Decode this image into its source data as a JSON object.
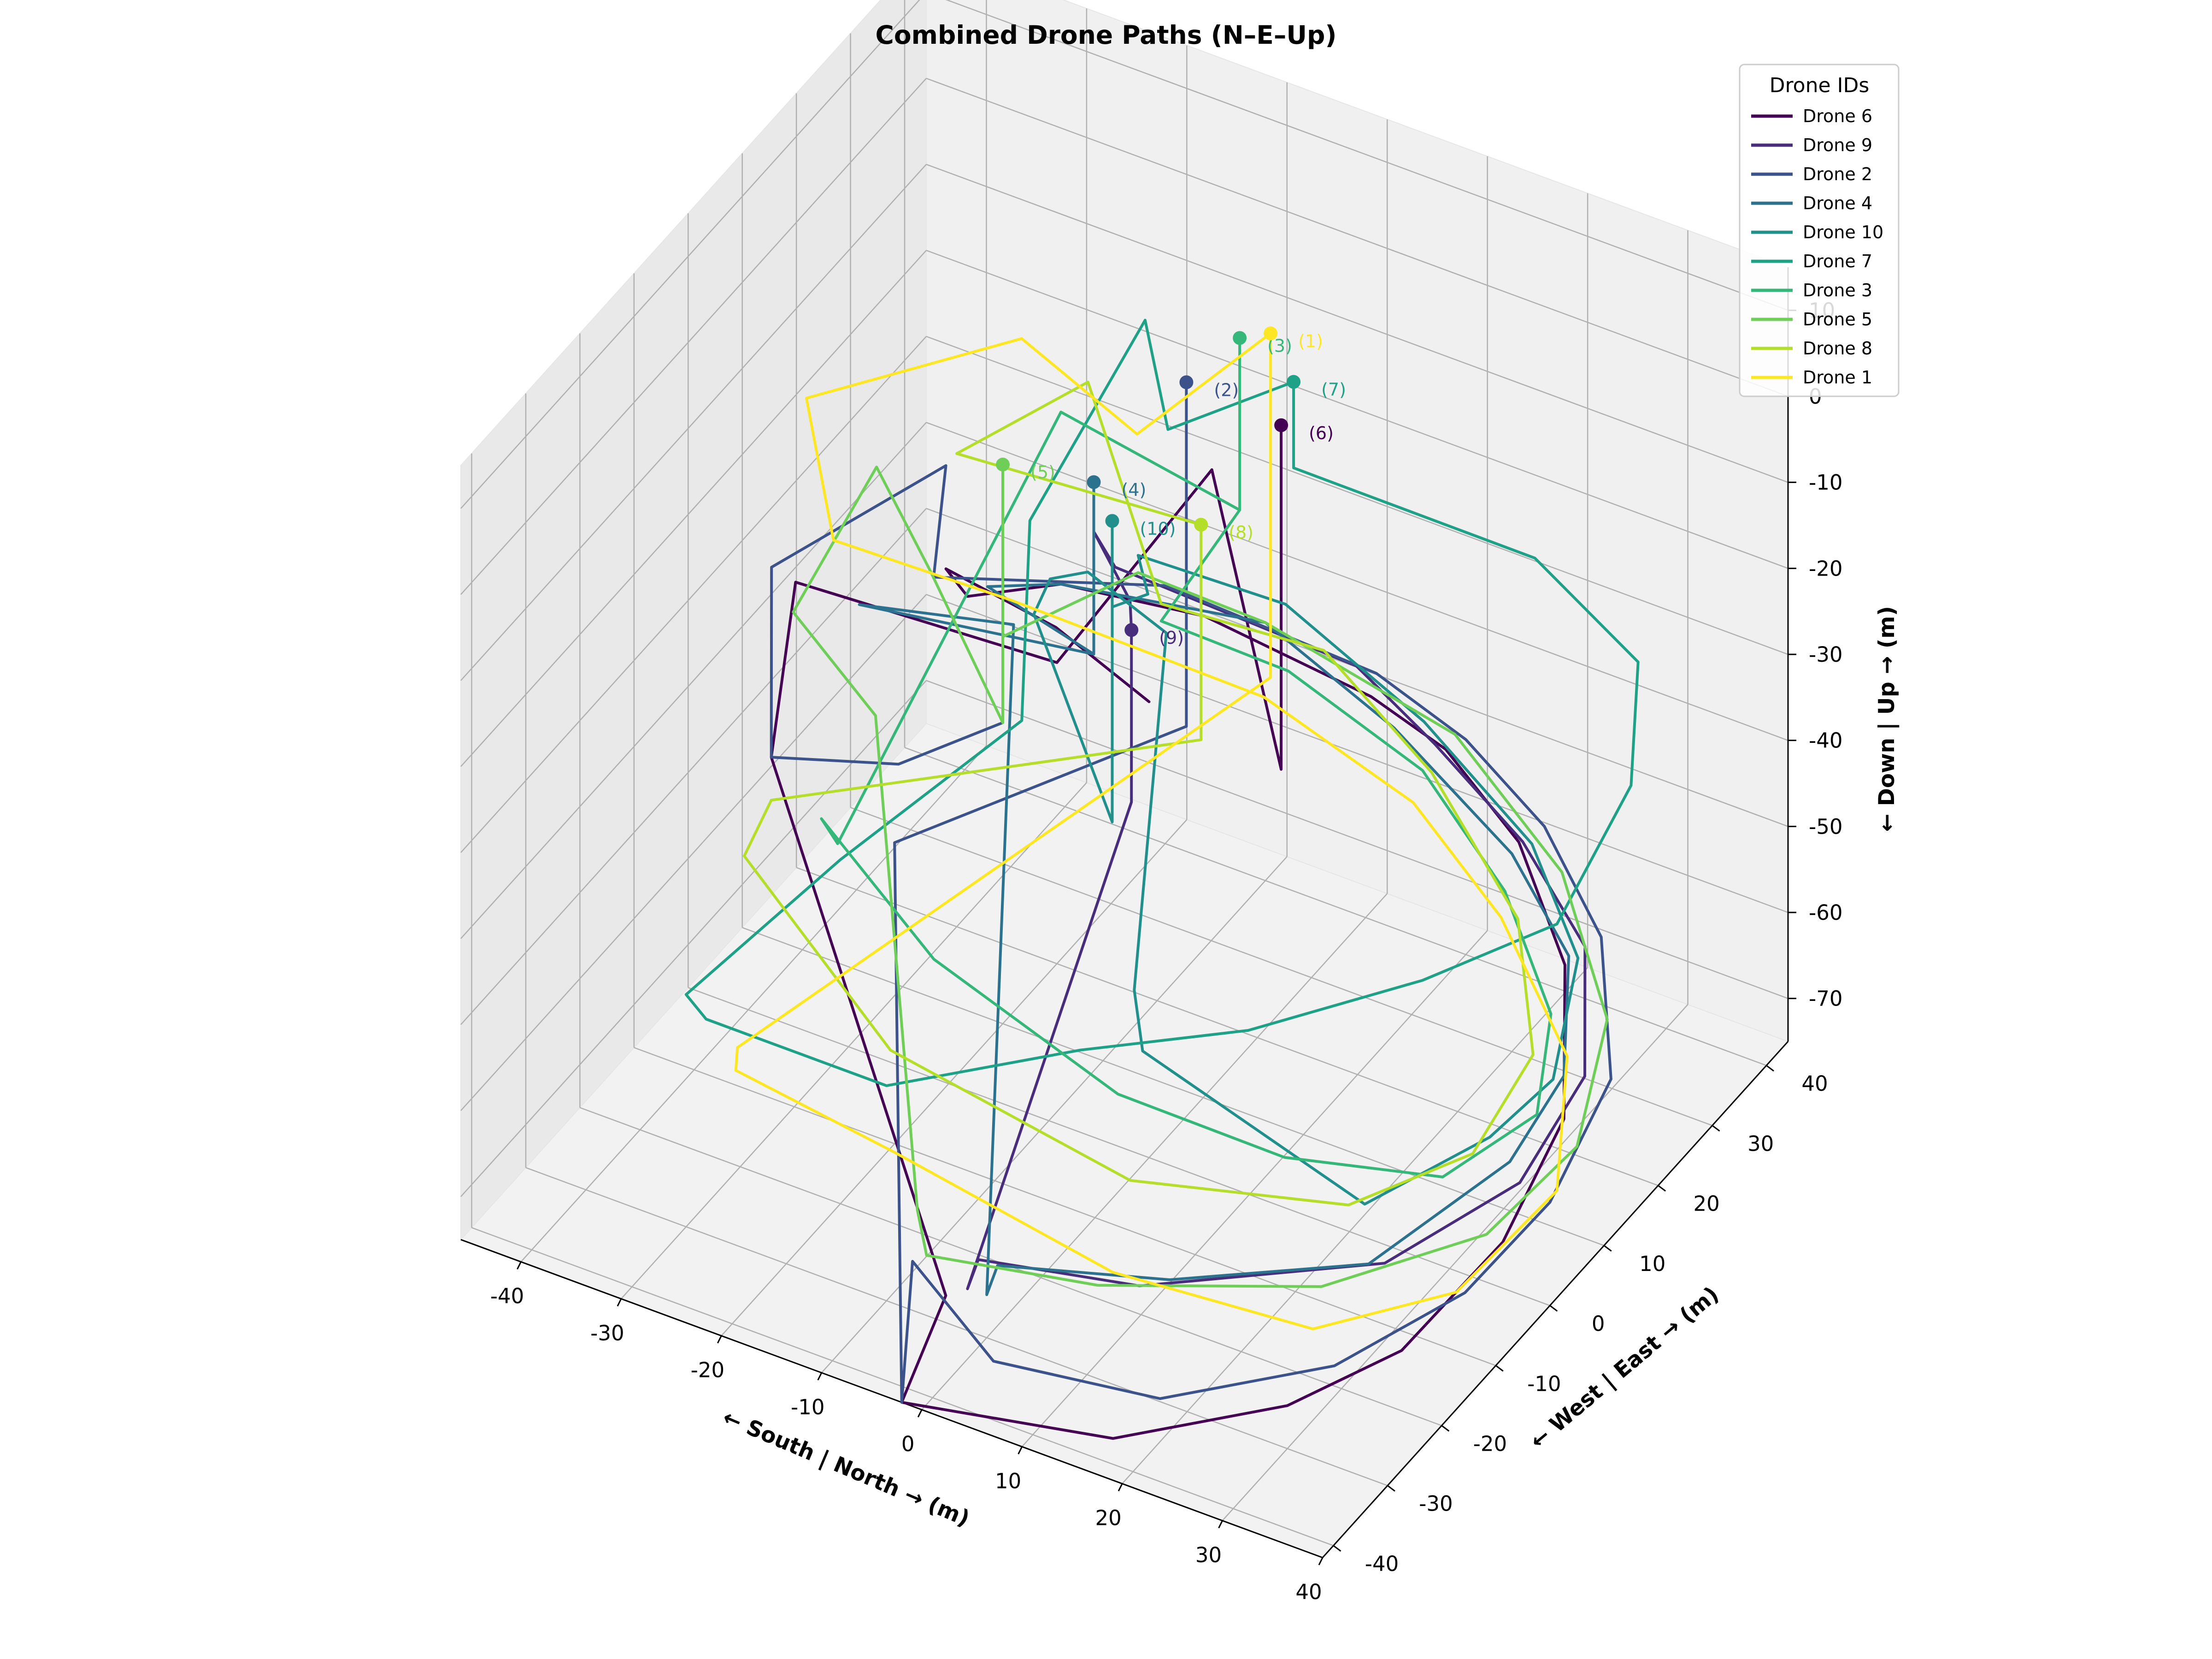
{
  "chart_data": {
    "type": "line",
    "title": "Combined Drone Paths (N–E–Up)",
    "xlabel": "← South | North → (m)",
    "ylabel": "← West | East → (m)",
    "zlabel": "← Down | Up → (m)",
    "xlim": [
      -46,
      40
    ],
    "ylim": [
      -42,
      44
    ],
    "zlim": [
      -75,
      15
    ],
    "x_ticks": [
      -40,
      -30,
      -20,
      -10,
      0,
      10,
      20,
      30,
      40
    ],
    "y_ticks": [
      -40,
      -30,
      -20,
      -10,
      0,
      10,
      20,
      30,
      40
    ],
    "z_ticks": [
      10,
      0,
      -10,
      -20,
      -30,
      -40,
      -50,
      -60,
      -70
    ],
    "grid": true,
    "legend": {
      "title": "Drone IDs",
      "placement": "top-right"
    },
    "series": [
      {
        "name": "Drone 6",
        "id": "6",
        "color": "#440154",
        "points": [
          [
            4,
            17,
            0
          ],
          [
            4,
            17,
            -20
          ],
          [
            4,
            17,
            -40
          ],
          [
            -4,
            19,
            -10
          ],
          [
            -20,
            20,
            -40
          ],
          [
            -45,
            18,
            -40
          ],
          [
            -35,
            -5,
            -40
          ],
          [
            -3,
            -32,
            -70
          ],
          [
            -2,
            -42,
            -75
          ],
          [
            18,
            -40,
            -72
          ],
          [
            30,
            -30,
            -70
          ],
          [
            36,
            -20,
            -68
          ],
          [
            38,
            -5,
            -65
          ],
          [
            36,
            10,
            -62
          ],
          [
            28,
            25,
            -58
          ],
          [
            18,
            35,
            -55
          ],
          [
            8,
            40,
            -52
          ],
          [
            0,
            41,
            -50
          ],
          [
            -15,
            38,
            -45
          ],
          [
            -25,
            30,
            -40
          ],
          [
            -30,
            22,
            -38
          ],
          [
            -30,
            18,
            -32
          ],
          [
            -12,
            5,
            -22
          ],
          [
            0,
            0,
            -22
          ]
        ]
      },
      {
        "name": "Drone 9",
        "id": "9",
        "color": "#472d7b",
        "points": [
          [
            -5,
            6,
            -20
          ],
          [
            -5,
            6,
            -40
          ],
          [
            -3,
            -28,
            -72
          ],
          [
            -3,
            -26,
            -70
          ],
          [
            12,
            -24,
            -68
          ],
          [
            30,
            -12,
            -66
          ],
          [
            37,
            0,
            -62
          ],
          [
            37,
            12,
            -58
          ],
          [
            30,
            25,
            -55
          ],
          [
            20,
            32,
            -52
          ],
          [
            8,
            38,
            -50
          ],
          [
            -2,
            42,
            -48
          ],
          [
            -25,
            40,
            -45
          ],
          [
            -26,
            38,
            -40
          ],
          [
            -10,
            15,
            -25
          ],
          [
            -5,
            6,
            -20
          ]
        ]
      },
      {
        "name": "Drone 2",
        "id": "2",
        "color": "#3b528b",
        "points": [
          [
            -6,
            18,
            0
          ],
          [
            -6,
            18,
            -40
          ],
          [
            -20,
            -10,
            -40
          ],
          [
            -2,
            -42,
            -75
          ],
          [
            -2,
            -40,
            -60
          ],
          [
            5,
            -38,
            -70
          ],
          [
            20,
            -35,
            -70
          ],
          [
            32,
            -25,
            -68
          ],
          [
            38,
            -12,
            -66
          ],
          [
            40,
            0,
            -63
          ],
          [
            38,
            15,
            -60
          ],
          [
            30,
            28,
            -56
          ],
          [
            20,
            36,
            -53
          ],
          [
            10,
            40,
            -50
          ],
          [
            0,
            42,
            -48
          ],
          [
            -20,
            40,
            -45
          ],
          [
            -35,
            25,
            -40
          ],
          [
            -30,
            18,
            -20
          ],
          [
            -42,
            8,
            -30
          ],
          [
            -35,
            -5,
            -40
          ],
          [
            -25,
            0,
            -40
          ],
          [
            -20,
            10,
            -40
          ]
        ]
      },
      {
        "name": "Drone 4",
        "id": "4",
        "color": "#2c728e",
        "points": [
          [
            -12,
            12,
            -10
          ],
          [
            -12,
            12,
            -30
          ],
          [
            -30,
            2,
            -25
          ],
          [
            -20,
            12,
            -30
          ],
          [
            0,
            -30,
            -70
          ],
          [
            0,
            -28,
            -68
          ],
          [
            15,
            -24,
            -66
          ],
          [
            30,
            -15,
            -64
          ],
          [
            36,
            0,
            -60
          ],
          [
            36,
            10,
            -57
          ],
          [
            30,
            22,
            -54
          ],
          [
            20,
            30,
            -52
          ],
          [
            5,
            36,
            -48
          ],
          [
            -10,
            40,
            -45
          ],
          [
            -25,
            30,
            -40
          ],
          [
            -28,
            22,
            -36
          ],
          [
            -12,
            12,
            -30
          ]
        ]
      },
      {
        "name": "Drone 10",
        "id": "10",
        "color": "#21908d",
        "points": [
          [
            -8,
            8,
            -10
          ],
          [
            -8,
            8,
            -45
          ],
          [
            -25,
            25,
            -40
          ],
          [
            -25,
            28,
            -38
          ],
          [
            -18,
            22,
            -30
          ],
          [
            -8,
            18,
            -30
          ],
          [
            5,
            -12,
            -45
          ],
          [
            8,
            -16,
            -48
          ],
          [
            28,
            -12,
            -60
          ],
          [
            34,
            0,
            -58
          ],
          [
            36,
            8,
            -56
          ],
          [
            32,
            20,
            -52
          ],
          [
            22,
            30,
            -50
          ],
          [
            8,
            36,
            -46
          ],
          [
            -8,
            40,
            -42
          ],
          [
            -20,
            35,
            -38
          ],
          [
            -12,
            22,
            -30
          ],
          [
            -8,
            8,
            -20
          ]
        ]
      },
      {
        "name": "Drone 7",
        "id": "7",
        "color": "#1ea186",
        "points": [
          [
            2,
            23,
            0
          ],
          [
            2,
            23,
            -10
          ],
          [
            25,
            25,
            -12
          ],
          [
            38,
            20,
            -15
          ],
          [
            40,
            15,
            -25
          ],
          [
            38,
            5,
            -35
          ],
          [
            30,
            -5,
            -38
          ],
          [
            18,
            -15,
            -42
          ],
          [
            5,
            -22,
            -45
          ],
          [
            -10,
            -30,
            -50
          ],
          [
            -28,
            -30,
            -50
          ],
          [
            -30,
            -30,
            -48
          ],
          [
            -20,
            -20,
            -35
          ],
          [
            -10,
            -5,
            -25
          ],
          [
            -20,
            15,
            -20
          ],
          [
            -22,
            40,
            -15
          ],
          [
            -10,
            22,
            -10
          ],
          [
            2,
            23,
            0
          ]
        ]
      },
      {
        "name": "Drone 3",
        "id": "3",
        "color": "#35b779",
        "points": [
          [
            -5,
            26,
            0
          ],
          [
            -5,
            26,
            -20
          ],
          [
            -25,
            30,
            -20
          ],
          [
            -30,
            -2,
            -50
          ],
          [
            -30,
            -5,
            -45
          ],
          [
            -15,
            -12,
            -50
          ],
          [
            5,
            -15,
            -55
          ],
          [
            20,
            -12,
            -58
          ],
          [
            32,
            -5,
            -60
          ],
          [
            36,
            5,
            -58
          ],
          [
            32,
            15,
            -55
          ],
          [
            22,
            25,
            -52
          ],
          [
            10,
            32,
            -48
          ],
          [
            -5,
            35,
            -45
          ],
          [
            -15,
            30,
            -40
          ],
          [
            -5,
            26,
            -20
          ]
        ]
      },
      {
        "name": "Drone 5",
        "id": "5",
        "color": "#6ece58",
        "points": [
          [
            -20,
            10,
            -10
          ],
          [
            -20,
            10,
            -40
          ],
          [
            -30,
            15,
            -30
          ],
          [
            -38,
            20,
            -25
          ],
          [
            -42,
            12,
            -38
          ],
          [
            -30,
            5,
            -40
          ],
          [
            -8,
            -28,
            -65
          ],
          [
            -6,
            -30,
            -68
          ],
          [
            10,
            -28,
            -66
          ],
          [
            28,
            -20,
            -64
          ],
          [
            38,
            -8,
            -62
          ],
          [
            40,
            5,
            -60
          ],
          [
            36,
            18,
            -56
          ],
          [
            25,
            30,
            -52
          ],
          [
            10,
            38,
            -48
          ],
          [
            -10,
            40,
            -45
          ],
          [
            -20,
            35,
            -40
          ],
          [
            -20,
            10,
            -30
          ]
        ]
      },
      {
        "name": "Drone 8",
        "id": "8",
        "color": "#b5de2b",
        "points": [
          [
            -4,
            17,
            -15
          ],
          [
            -4,
            17,
            -40
          ],
          [
            -35,
            -5,
            -45
          ],
          [
            -35,
            -10,
            -48
          ],
          [
            -15,
            -20,
            -55
          ],
          [
            10,
            -22,
            -58
          ],
          [
            28,
            -15,
            -58
          ],
          [
            35,
            -5,
            -56
          ],
          [
            34,
            8,
            -54
          ],
          [
            26,
            20,
            -50
          ],
          [
            12,
            30,
            -46
          ],
          [
            -2,
            36,
            -42
          ],
          [
            -15,
            30,
            -38
          ],
          [
            -25,
            35,
            -20
          ],
          [
            -30,
            20,
            -20
          ],
          [
            -4,
            17,
            -15
          ]
        ]
      },
      {
        "name": "Drone 1",
        "id": "1",
        "color": "#fde725",
        "points": [
          [
            -3,
            28,
            0
          ],
          [
            -3,
            28,
            -15
          ],
          [
            -3,
            28,
            -40
          ],
          [
            -40,
            -2,
            -78
          ],
          [
            -38,
            -6,
            -77
          ],
          [
            -20,
            -10,
            -76
          ],
          [
            5,
            -16,
            -75
          ],
          [
            25,
            -16,
            -73
          ],
          [
            35,
            -8,
            -70
          ],
          [
            38,
            5,
            -66
          ],
          [
            32,
            18,
            -62
          ],
          [
            20,
            28,
            -58
          ],
          [
            8,
            34,
            -54
          ],
          [
            -8,
            36,
            -50
          ],
          [
            -30,
            30,
            -44
          ],
          [
            -45,
            25,
            -40
          ],
          [
            -45,
            20,
            -20
          ],
          [
            -30,
            32,
            -15
          ],
          [
            -12,
            20,
            -10
          ],
          [
            -3,
            28,
            0
          ]
        ]
      }
    ]
  }
}
